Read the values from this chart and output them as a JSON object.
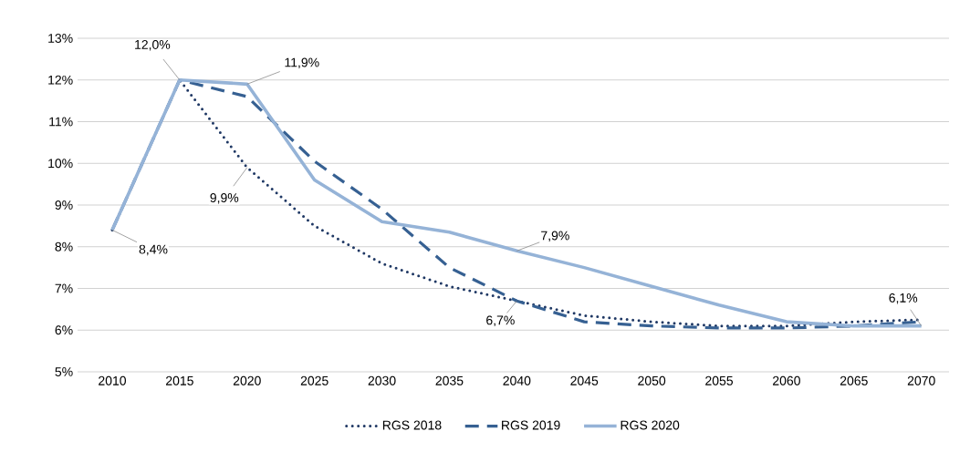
{
  "chart_data": {
    "type": "line",
    "categories": [
      "2010",
      "2015",
      "2020",
      "2025",
      "2030",
      "2035",
      "2040",
      "2045",
      "2050",
      "2055",
      "2060",
      "2065",
      "2070"
    ],
    "ylim": [
      5,
      13
    ],
    "yticks": [
      {
        "value": 5,
        "label": "5%"
      },
      {
        "value": 6,
        "label": "6%"
      },
      {
        "value": 7,
        "label": "7%"
      },
      {
        "value": 8,
        "label": "8%"
      },
      {
        "value": 9,
        "label": "9%"
      },
      {
        "value": 10,
        "label": "10%"
      },
      {
        "value": 11,
        "label": "11%"
      },
      {
        "value": 12,
        "label": "12%"
      },
      {
        "value": 13,
        "label": "13%"
      }
    ],
    "grid": "y",
    "legend": "bottom",
    "series": [
      {
        "name": "RGS 2018",
        "color": "#1f3864",
        "line_style": "dotted",
        "values": [
          8.4,
          12.0,
          9.9,
          8.5,
          7.6,
          7.05,
          6.7,
          6.35,
          6.2,
          6.1,
          6.1,
          6.2,
          6.25
        ]
      },
      {
        "name": "RGS 2019",
        "color": "#366092",
        "line_style": "dashed",
        "values": [
          8.4,
          12.0,
          11.6,
          10.05,
          8.9,
          7.5,
          6.7,
          6.2,
          6.1,
          6.05,
          6.05,
          6.1,
          6.2
        ]
      },
      {
        "name": "RGS 2020",
        "color": "#95b3d7",
        "line_style": "solid",
        "values": [
          8.4,
          12.0,
          11.9,
          9.6,
          8.6,
          8.35,
          7.9,
          7.5,
          7.05,
          6.6,
          6.2,
          6.1,
          6.1
        ]
      }
    ],
    "annotations": [
      {
        "text": "8,4%",
        "x": "2010",
        "y": 8.4
      },
      {
        "text": "12,0%",
        "x": "2015",
        "y": 12.0
      },
      {
        "text": "11,9%",
        "x": "2020",
        "y": 11.9
      },
      {
        "text": "9,9%",
        "x": "2020",
        "y": 9.9
      },
      {
        "text": "7,9%",
        "x": "2040",
        "y": 7.9
      },
      {
        "text": "6,7%",
        "x": "2040",
        "y": 6.7
      },
      {
        "text": "6,1%",
        "x": "2070",
        "y": 6.1
      }
    ]
  }
}
